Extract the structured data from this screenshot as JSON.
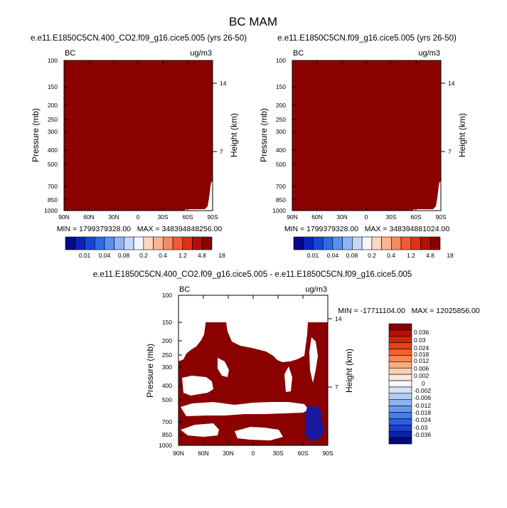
{
  "figure": {
    "title": "BC MAM"
  },
  "colors": {
    "field": "#8b0000",
    "background": "#ffffff",
    "negative": "#1a1a9e",
    "top_palette": [
      "#08088a",
      "#0a22b8",
      "#1446d8",
      "#2e6ae8",
      "#5a90f0",
      "#8db4f5",
      "#c2d8fa",
      "#f4f4fb",
      "#fbd6c2",
      "#fab394",
      "#f88a62",
      "#f45a34",
      "#e23212",
      "#b40e06",
      "#8b0000"
    ],
    "bottom_palette": [
      "#8b0000",
      "#b21004",
      "#d02508",
      "#e7401a",
      "#f2602c",
      "#f7884f",
      "#f9ae80",
      "#fbcdb2",
      "#f9e8dc",
      "#f6f6fb",
      "#d2e1f7",
      "#b4cdf5",
      "#8eb2f2",
      "#6a97ee",
      "#4a7ce8",
      "#2c5ee0",
      "#1840cc",
      "#0b24a6",
      "#050a80"
    ]
  },
  "chart_data": [
    {
      "type": "heatmap",
      "title": "e.e11.E1850C5CN.400_CO2.f09_g16.cice5.005 (yrs 26-50)",
      "left_label": "BC",
      "right_label": "ug/m3",
      "ylabel": "Pressure (mb)",
      "ylabel_right": "Height (km)",
      "x_ticks": [
        "90N",
        "60N",
        "30N",
        "0",
        "30S",
        "60S",
        "90S"
      ],
      "y_ticks": [
        "100",
        "150",
        "200",
        "250",
        "300",
        "400",
        "500",
        "700",
        "850",
        "1000"
      ],
      "height_ticks": [
        "14",
        "7"
      ],
      "stats": "MIN = 1799379328.00   MAX = 348394848256.00",
      "colorbar_labels": [
        "0.01",
        "0.04",
        "0.08",
        "0.2",
        "0.4",
        "1.2",
        "4.8",
        "18"
      ]
    },
    {
      "type": "heatmap",
      "title": "e.e11.E1850C5CN.f09_g16.cice5.005 (yrs 26-50)",
      "left_label": "BC",
      "right_label": "ug/m3",
      "ylabel": "Pressure (mb)",
      "ylabel_right": "Height (km)",
      "x_ticks": [
        "90N",
        "60N",
        "30N",
        "0",
        "30S",
        "60S",
        "90S"
      ],
      "y_ticks": [
        "100",
        "150",
        "200",
        "250",
        "300",
        "400",
        "500",
        "700",
        "850",
        "1000"
      ],
      "height_ticks": [
        "14",
        "7"
      ],
      "stats": "MIN = 1799379328.00   MAX = 348394881024.00",
      "colorbar_labels": [
        "0.01",
        "0.04",
        "0.08",
        "0.2",
        "0.4",
        "1.2",
        "4.8",
        "18"
      ]
    },
    {
      "type": "heatmap",
      "title": "e.e11.E1850C5CN.400_CO2.f09_g16.cice5.005 - e.e11.E1850C5CN.f09_g16.cice5.005",
      "left_label": "BC",
      "right_label": "ug/m3",
      "ylabel": "Pressure (mb)",
      "ylabel_right": "Height (km)",
      "x_ticks": [
        "90N",
        "60N",
        "30N",
        "0",
        "30S",
        "60S",
        "90S"
      ],
      "y_ticks": [
        "100",
        "150",
        "200",
        "250",
        "300",
        "400",
        "500",
        "700",
        "850",
        "1000"
      ],
      "height_ticks": [
        "14",
        "7"
      ],
      "stats": "MIN = -17711104.00   MAX = 12025856.00",
      "colorbar_labels": [
        "0.036",
        "0.03",
        "0.024",
        "0.018",
        "0.012",
        "0.006",
        "0.002",
        "0",
        "-0.002",
        "-0.006",
        "-0.012",
        "-0.018",
        "-0.024",
        "-0.03",
        "-0.036"
      ]
    }
  ]
}
